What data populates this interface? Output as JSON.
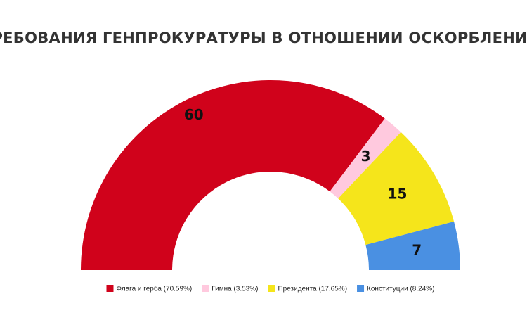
{
  "chart_data": {
    "type": "semidonut",
    "title": "ТРЕБОВАНИЯ ГЕНПРОКУРАТУРЫ В ОТНОШЕНИИ ОСКОРБЛЕНИЯ:",
    "categories": [
      "Флага и герба (70.59%)",
      "Гимна (3.53%)",
      "Президента (17.65%)",
      "Конституции (8.24%)"
    ],
    "values": [
      60,
      3,
      15,
      7
    ],
    "colors": [
      "#d0021b",
      "#ffc9de",
      "#f5e51b",
      "#4a90e2"
    ],
    "legend": "bottom"
  }
}
